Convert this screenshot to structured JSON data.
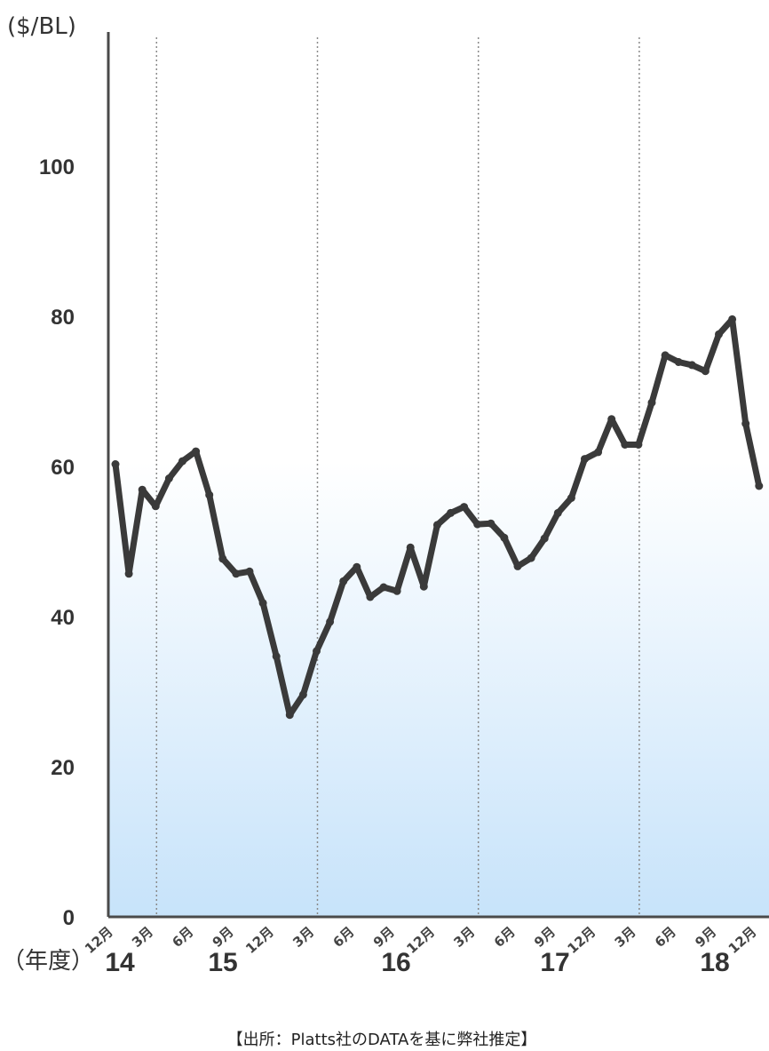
{
  "chart_data": {
    "type": "line",
    "ylabel": "($/BL)",
    "ylim": [
      0,
      115
    ],
    "yticks": [
      0,
      20,
      40,
      60,
      80,
      100
    ],
    "x_ticks": [
      "12月",
      "3月",
      "6月",
      "9月",
      "12月",
      "3月",
      "6月",
      "9月",
      "12月",
      "3月",
      "6月",
      "9月",
      "12月",
      "3月",
      "6月",
      "9月",
      "12月"
    ],
    "years": [
      "14",
      "15",
      "16",
      "17",
      "18"
    ],
    "fiscal_year_label": "（年度）",
    "source": "【出所：Platts社のDATAを基に弊社推定】",
    "grid": "vertical dotted lines at 3月 (fiscal year boundaries)",
    "area_fill": "light blue gradient below 60",
    "series": [
      {
        "x": [
          "2014-12",
          "2015-01",
          "2015-02",
          "2015-03",
          "2015-04",
          "2015-05",
          "2015-06",
          "2015-07",
          "2015-08",
          "2015-09",
          "2015-10",
          "2015-11",
          "2015-12",
          "2016-01",
          "2016-02",
          "2016-03",
          "2016-04",
          "2016-05",
          "2016-06",
          "2016-07",
          "2016-08",
          "2016-09",
          "2016-10",
          "2016-11",
          "2016-12",
          "2017-01",
          "2017-02",
          "2017-03",
          "2017-04",
          "2017-05",
          "2017-06",
          "2017-07",
          "2017-08",
          "2017-09",
          "2017-10",
          "2017-11",
          "2017-12",
          "2018-01",
          "2018-02",
          "2018-03",
          "2018-04",
          "2018-05",
          "2018-06",
          "2018-07",
          "2018-08",
          "2018-09",
          "2018-10",
          "2018-11",
          "2018-12"
        ],
        "values": [
          60.3,
          45.7,
          56.9,
          54.7,
          58.4,
          60.7,
          62.0,
          56.2,
          47.7,
          45.7,
          46.0,
          41.8,
          34.7,
          26.9,
          29.6,
          35.4,
          39.3,
          44.7,
          46.6,
          42.6,
          43.9,
          43.4,
          49.2,
          44.0,
          52.2,
          53.8,
          54.6,
          52.3,
          52.4,
          50.5,
          46.7,
          47.8,
          50.4,
          53.8,
          55.8,
          61.0,
          61.9,
          66.3,
          62.9,
          62.9,
          68.5,
          74.8,
          73.9,
          73.5,
          72.7,
          77.6,
          79.6,
          65.7,
          57.4
        ]
      }
    ]
  }
}
